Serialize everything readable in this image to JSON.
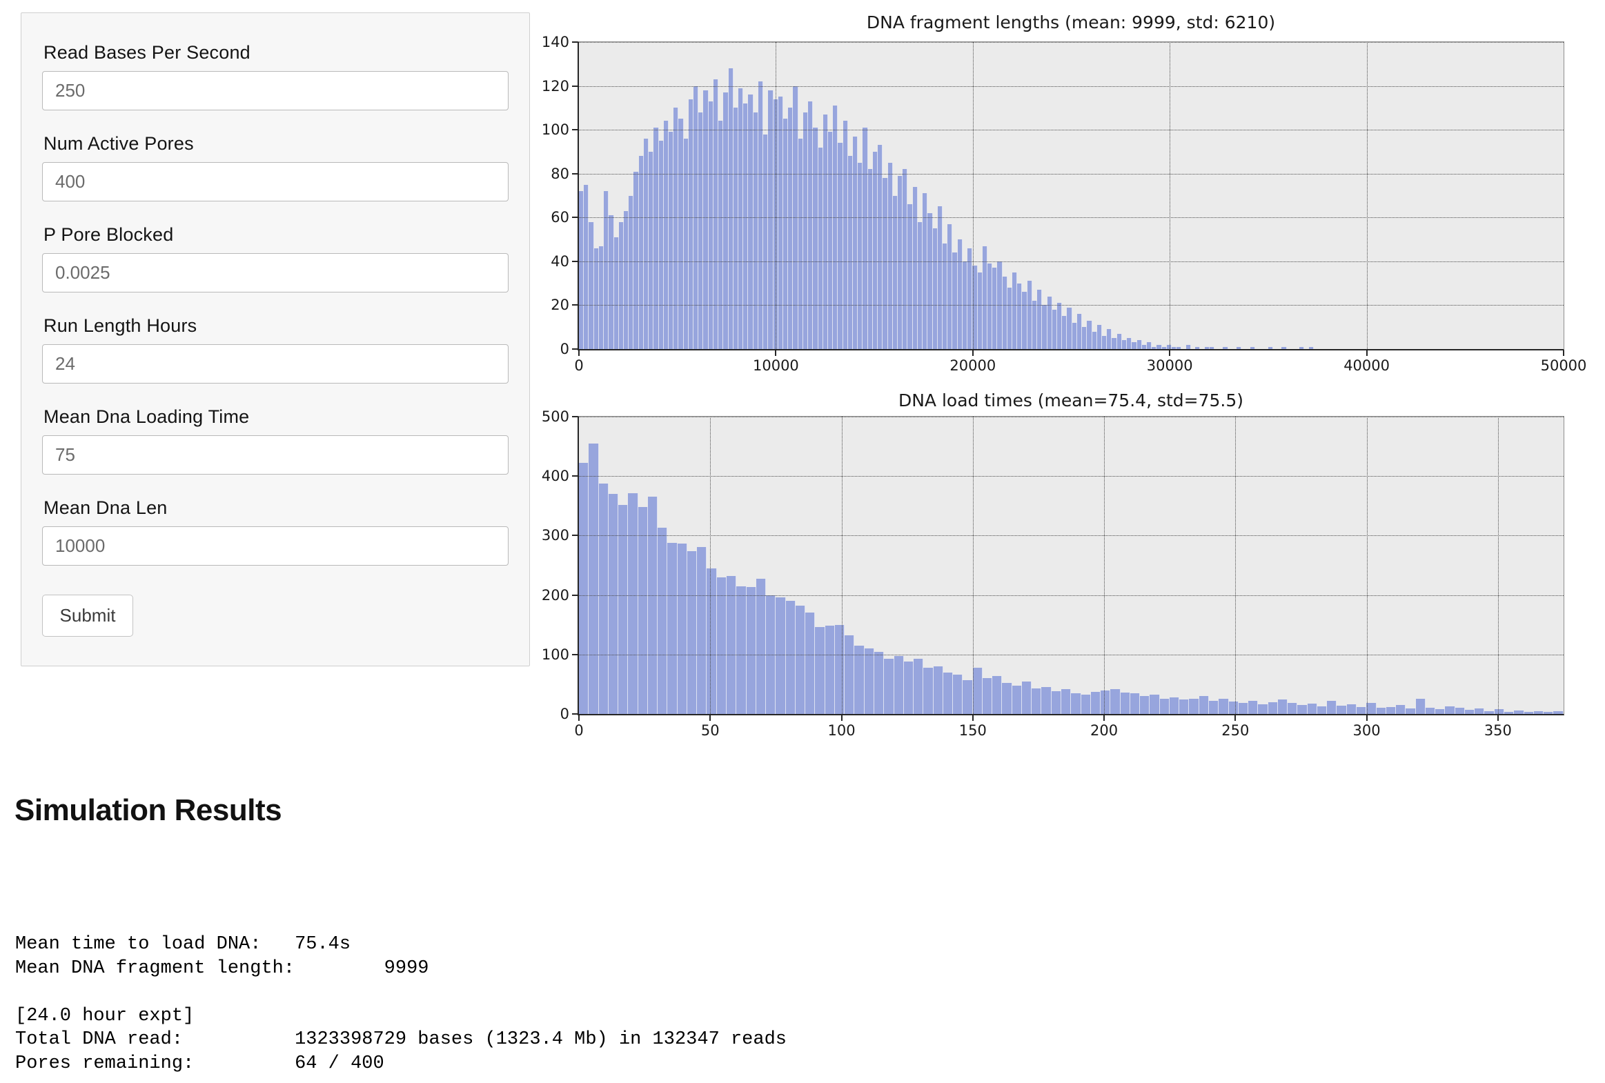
{
  "form": {
    "fields": [
      {
        "label": "Read Bases Per Second",
        "value": "250"
      },
      {
        "label": "Num Active Pores",
        "value": "400"
      },
      {
        "label": "P Pore Blocked",
        "value": "0.0025"
      },
      {
        "label": "Run Length Hours",
        "value": "24"
      },
      {
        "label": "Mean Dna Loading Time",
        "value": "75"
      },
      {
        "label": "Mean Dna Len",
        "value": "10000"
      }
    ],
    "submit_label": "Submit"
  },
  "results": {
    "heading": "Simulation Results",
    "console_text": "Mean time to load DNA:   75.4s\nMean DNA fragment length:        9999\n\n[24.0 hour expt]\nTotal DNA read:          1323398729 bases (1323.4 Mb) in 132347 reads\nPores remaining:         64 / 400"
  },
  "chart_data": [
    {
      "type": "bar",
      "title": "DNA fragment lengths (mean: 9999, std: 6210)",
      "xlabel": "",
      "ylabel": "",
      "xlim": [
        0,
        50000
      ],
      "ylim": [
        0,
        140
      ],
      "xticks": [
        0,
        10000,
        20000,
        30000,
        40000,
        50000
      ],
      "yticks": [
        0,
        20,
        40,
        60,
        80,
        100,
        120,
        140
      ],
      "grid": "dotted",
      "legend": "none",
      "bin_start": 0,
      "bin_width": 249,
      "values": [
        72,
        75,
        58,
        46,
        47,
        72,
        61,
        51,
        58,
        63,
        70,
        81,
        88,
        96,
        90,
        101,
        95,
        104,
        99,
        110,
        105,
        96,
        114,
        120,
        108,
        118,
        113,
        123,
        104,
        117,
        128,
        110,
        119,
        112,
        116,
        108,
        122,
        98,
        118,
        114,
        115,
        105,
        110,
        120,
        96,
        108,
        113,
        101,
        92,
        107,
        99,
        111,
        94,
        104,
        88,
        97,
        85,
        101,
        82,
        90,
        93,
        78,
        85,
        70,
        79,
        82,
        66,
        74,
        58,
        71,
        62,
        55,
        65,
        48,
        57,
        44,
        50,
        40,
        46,
        38,
        35,
        47,
        39,
        37,
        40,
        33,
        28,
        35,
        30,
        26,
        31,
        22,
        27,
        20,
        24,
        18,
        21,
        15,
        19,
        12,
        16,
        10,
        13,
        8,
        11,
        6,
        9,
        5,
        7,
        4,
        5,
        3,
        4,
        2,
        3,
        1,
        2,
        1,
        2,
        1,
        1,
        0,
        2,
        0,
        1,
        0,
        1,
        1,
        0,
        0,
        1,
        0,
        0,
        1,
        0,
        0,
        1,
        0,
        0,
        0,
        1,
        0,
        0,
        1,
        0,
        0,
        0,
        1,
        0,
        1
      ],
      "bar_color": "#97a5dd",
      "plot_bg": "#ebebeb"
    },
    {
      "type": "bar",
      "title": "DNA load times (mean=75.4, std=75.5)",
      "xlabel": "",
      "ylabel": "",
      "xlim": [
        0,
        375
      ],
      "ylim": [
        0,
        500
      ],
      "xticks": [
        0,
        50,
        100,
        150,
        200,
        250,
        300,
        350
      ],
      "yticks": [
        0,
        100,
        200,
        300,
        400,
        500
      ],
      "grid": "dotted",
      "legend": "none",
      "bin_start": 0,
      "bin_width": 3.75,
      "values": [
        422,
        455,
        388,
        370,
        352,
        371,
        348,
        365,
        313,
        288,
        287,
        274,
        281,
        245,
        230,
        232,
        215,
        214,
        227,
        200,
        196,
        190,
        182,
        171,
        146,
        148,
        150,
        132,
        115,
        110,
        105,
        93,
        98,
        88,
        93,
        78,
        80,
        70,
        66,
        57,
        78,
        60,
        64,
        52,
        48,
        55,
        43,
        45,
        38,
        42,
        35,
        33,
        37,
        40,
        42,
        36,
        35,
        30,
        33,
        25,
        28,
        24,
        26,
        30,
        22,
        25,
        21,
        18,
        22,
        16,
        20,
        24,
        18,
        15,
        17,
        13,
        22,
        14,
        16,
        12,
        18,
        10,
        12,
        15,
        9,
        25,
        11,
        8,
        13,
        10,
        7,
        9,
        5,
        8,
        4,
        6,
        3,
        5,
        4,
        5
      ],
      "bar_color": "#97a5dd",
      "plot_bg": "#ebebeb"
    }
  ]
}
